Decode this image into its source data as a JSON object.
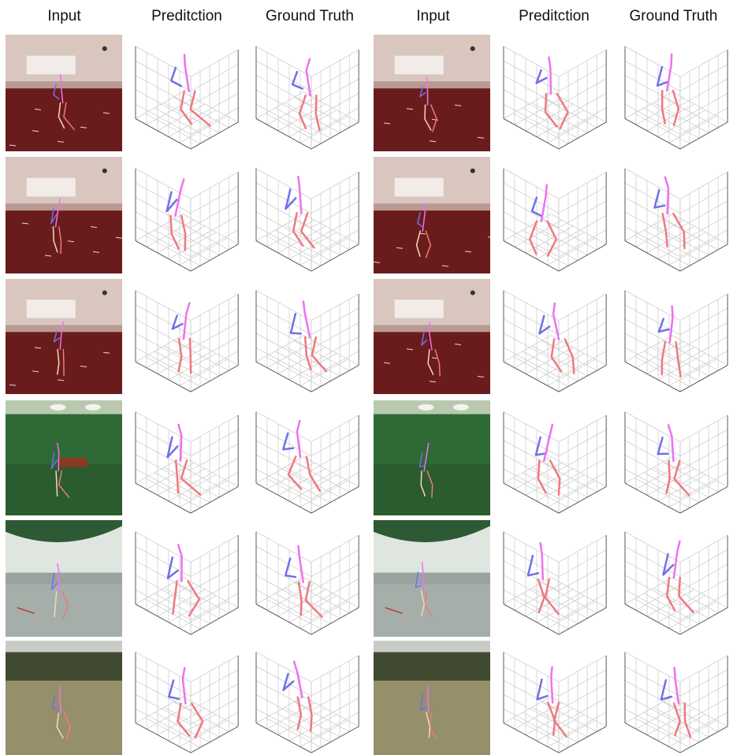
{
  "headers": [
    "Input",
    "Preditction",
    "Ground Truth",
    "Input",
    "Preditction",
    "Ground Truth"
  ],
  "colors": {
    "right_limb": "#f07880",
    "left_limb": "#7070e8",
    "spine_head": "#f070f0",
    "grid": "#c8c8c8",
    "axis": "#505050"
  },
  "scenes": [
    "lab",
    "lab",
    "lab",
    "lab",
    "lab",
    "lab",
    "green",
    "green",
    "studio",
    "studio",
    "outdoor",
    "outdoor"
  ]
}
